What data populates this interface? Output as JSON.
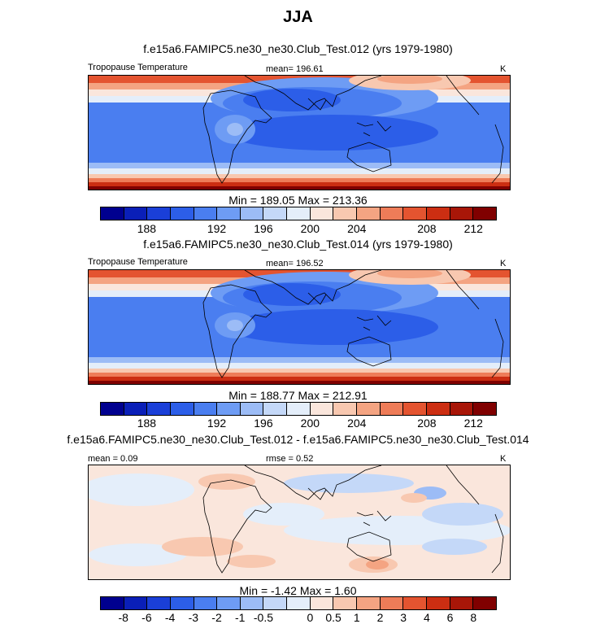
{
  "title": "JJA",
  "panels": [
    {
      "title": "f.e15a6.FAMIPC5.ne30_ne30.Club_Test.012 (yrs 1979-1980)",
      "left_label": "Tropopause Temperature",
      "center_label": "mean= 196.61",
      "units": "K",
      "minmax": "Min = 189.05 Max = 213.36",
      "colorbar": {
        "colors": [
          "#00008f",
          "#0a1fb8",
          "#1a3fd8",
          "#2c5ee8",
          "#4a7ef0",
          "#6e9cf4",
          "#9cbcf6",
          "#c4d8f8",
          "#e4eefa",
          "#fae6dc",
          "#f8c8b0",
          "#f4a482",
          "#ee7c58",
          "#e45430",
          "#cc2e12",
          "#a81608",
          "#800000"
        ],
        "ticks": [
          "188",
          "192",
          "196",
          "200",
          "204",
          "208",
          "212"
        ]
      }
    },
    {
      "title": "f.e15a6.FAMIPC5.ne30_ne30.Club_Test.014 (yrs 1979-1980)",
      "left_label": "Tropopause Temperature",
      "center_label": "mean= 196.52",
      "units": "K",
      "minmax": "Min = 188.77 Max = 212.91",
      "colorbar": {
        "colors": [
          "#00008f",
          "#0a1fb8",
          "#1a3fd8",
          "#2c5ee8",
          "#4a7ef0",
          "#6e9cf4",
          "#9cbcf6",
          "#c4d8f8",
          "#e4eefa",
          "#fae6dc",
          "#f8c8b0",
          "#f4a482",
          "#ee7c58",
          "#e45430",
          "#cc2e12",
          "#a81608",
          "#800000"
        ],
        "ticks": [
          "188",
          "192",
          "196",
          "200",
          "204",
          "208",
          "212"
        ]
      }
    },
    {
      "title": "f.e15a6.FAMIPC5.ne30_ne30.Club_Test.012 - f.e15a6.FAMIPC5.ne30_ne30.Club_Test.014",
      "left_label": "mean =   0.09",
      "center_label": "rmse =   0.52",
      "units": "K",
      "minmax": "Min =  -1.42 Max =   1.60",
      "colorbar": {
        "colors": [
          "#00008f",
          "#0a1fb8",
          "#1a3fd8",
          "#2c5ee8",
          "#4a7ef0",
          "#6e9cf4",
          "#9cbcf6",
          "#c4d8f8",
          "#e4eefa",
          "#fae6dc",
          "#f8c8b0",
          "#f4a482",
          "#ee7c58",
          "#e45430",
          "#cc2e12",
          "#a81608",
          "#800000"
        ],
        "ticks": [
          "-8",
          "-6",
          "-4",
          "-3",
          "-2",
          "-1",
          "-0.5",
          "0",
          "0.5",
          "1",
          "2",
          "3",
          "4",
          "6",
          "8"
        ]
      }
    }
  ]
}
